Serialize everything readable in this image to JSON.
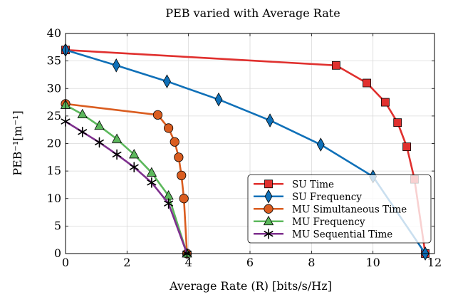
{
  "chart_data": {
    "type": "line",
    "title": "PEB varied with Average Rate",
    "xlabel": "Average Rate (R) [bits/s/Hz]",
    "ylabel": "PEB⁻¹[m⁻¹]",
    "xlim": [
      0,
      12
    ],
    "ylim": [
      0,
      40
    ],
    "xticks": [
      0,
      2,
      4,
      6,
      8,
      10,
      12
    ],
    "yticks": [
      0,
      5,
      10,
      15,
      20,
      25,
      30,
      35,
      40
    ],
    "grid": true,
    "legend_position": "bottom-right",
    "series": [
      {
        "name": "SU Time",
        "color": "#e0302e",
        "marker": "square",
        "x": [
          0,
          8.8,
          9.8,
          10.4,
          10.8,
          11.1,
          11.35,
          11.7
        ],
        "y": [
          37,
          34.2,
          31,
          27.5,
          23.8,
          19.4,
          13.5,
          0
        ]
      },
      {
        "name": "SU Frequency",
        "color": "#0f70b8",
        "marker": "diamond",
        "x": [
          0,
          1.65,
          3.3,
          4.98,
          6.65,
          8.3,
          10,
          11.7
        ],
        "y": [
          37,
          34.2,
          31.3,
          28,
          24.2,
          19.8,
          14,
          0
        ]
      },
      {
        "name": "MU Simultaneous Time",
        "color": "#da5d20",
        "marker": "circle",
        "x": [
          0,
          3,
          3.35,
          3.55,
          3.68,
          3.77,
          3.85,
          3.95
        ],
        "y": [
          27.2,
          25.2,
          22.8,
          20.3,
          17.5,
          14.2,
          10,
          0
        ]
      },
      {
        "name": "MU Frequency",
        "color": "#5cb85c",
        "marker": "triangle",
        "x": [
          0,
          0.55,
          1.1,
          1.67,
          2.23,
          2.8,
          3.35,
          3.95
        ],
        "y": [
          27,
          25.3,
          23.2,
          20.8,
          18,
          14.7,
          10.5,
          0
        ]
      },
      {
        "name": "MU Sequential Time",
        "color": "#7e2f8e",
        "marker": "asterisk",
        "x": [
          0,
          0.55,
          1.1,
          1.67,
          2.23,
          2.8,
          3.35,
          3.95
        ],
        "y": [
          24,
          22.1,
          20.2,
          18,
          15.7,
          12.9,
          9.1,
          0
        ]
      }
    ]
  }
}
